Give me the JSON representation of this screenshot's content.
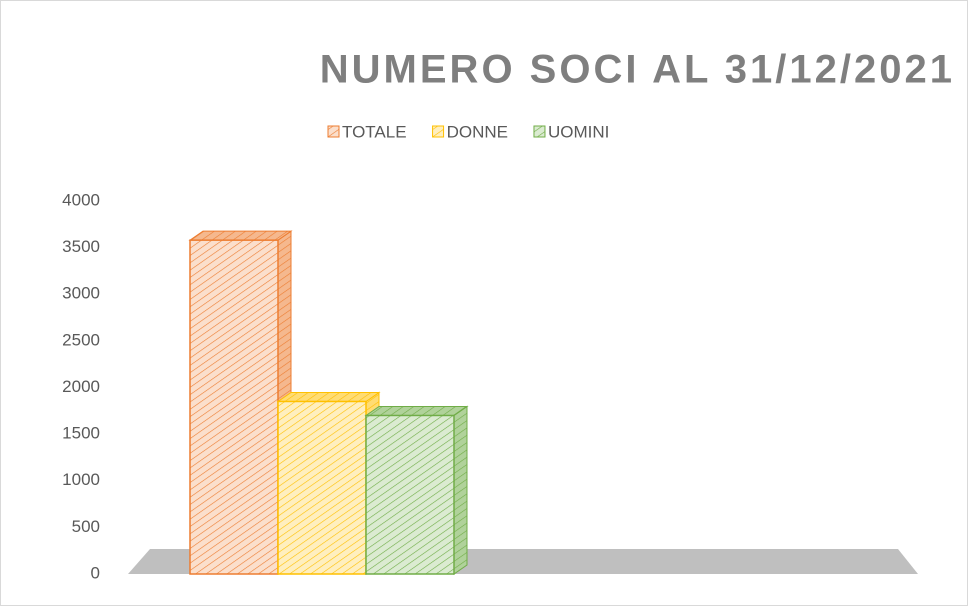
{
  "chart_data": {
    "type": "bar3d",
    "title": "NUMERO SOCI AL 31/12/2021",
    "categories": [
      null
    ],
    "series": [
      {
        "name": "TOTALE",
        "color": "#ed7d31",
        "values": [
          3580
        ]
      },
      {
        "name": "DONNE",
        "color": "#ffc000",
        "values": [
          1850
        ]
      },
      {
        "name": "UOMINI",
        "color": "#70ad47",
        "values": [
          1700
        ]
      }
    ],
    "ylim": [
      0,
      4000
    ],
    "yticks": [
      0,
      500,
      1000,
      1500,
      2000,
      2500,
      3000,
      3500,
      4000
    ],
    "grid": false,
    "legend": "top"
  }
}
